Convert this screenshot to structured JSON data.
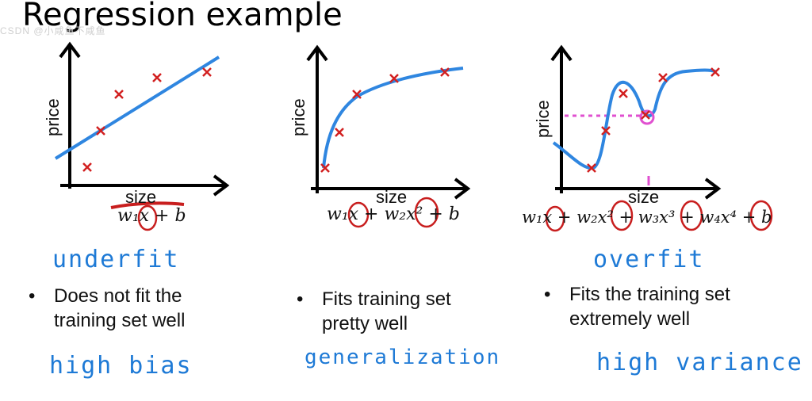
{
  "title": "Regression example",
  "watermark": "CSDN @小咸鱼不咸鱼",
  "panels": [
    {
      "id": "underfit",
      "xlabel": "size",
      "ylabel": "price",
      "formula": "w₁x + b",
      "fit_label": "underfit",
      "bullet": [
        "Does not fit the",
        "training set well"
      ],
      "diagnosis": "high bias"
    },
    {
      "id": "generalization",
      "xlabel": "size",
      "ylabel": "price",
      "formula": "w₁x + w₂x² + b",
      "fit_label": "",
      "bullet": [
        "Fits training set",
        "pretty well"
      ],
      "diagnosis": "generalization"
    },
    {
      "id": "overfit",
      "xlabel": "size",
      "ylabel": "price",
      "formula": "w₁x + w₂x² + w₃x³ + w₄x⁴ + b",
      "fit_label": "overfit",
      "bullet": [
        "Fits the training set",
        "extremely well"
      ],
      "diagnosis": "high variance"
    }
  ],
  "colors": {
    "curve": "#2f86e0",
    "points": "#d22020",
    "annotation": "#e050d0",
    "handwriting": "#1e7ad6",
    "circle": "#c81e1e"
  }
}
